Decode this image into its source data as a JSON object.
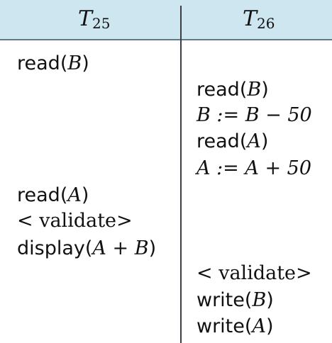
{
  "header": {
    "left": {
      "name": "T",
      "sub": "25"
    },
    "right": {
      "name": "T",
      "sub": "26"
    }
  },
  "t25": {
    "read_b_fn": "read",
    "read_b_arg": "B",
    "read_a_fn": "read",
    "read_a_arg": "A",
    "validate": "< validate>",
    "display_fn": "display",
    "display_arg": "A + B"
  },
  "t26": {
    "read_b_fn": "read",
    "read_b_arg": "B",
    "assign_b": "B := B − 50",
    "read_a_fn": "read",
    "read_a_arg": "A",
    "assign_a": "A := A + 50",
    "validate": "< validate>",
    "write_b_fn": "write",
    "write_b_arg": "B",
    "write_a_fn": "write",
    "write_a_arg": "A"
  }
}
